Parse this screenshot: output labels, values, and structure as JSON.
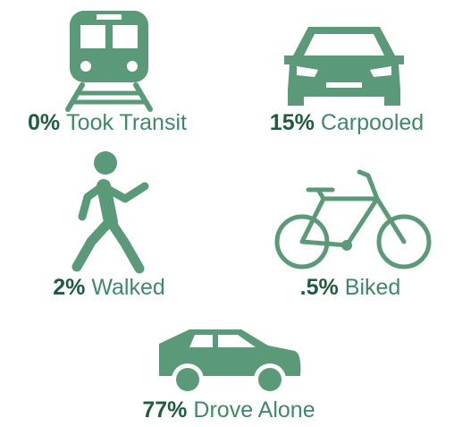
{
  "items": [
    {
      "percent": "0%",
      "label": "Took Transit"
    },
    {
      "percent": "15%",
      "label": "Carpooled"
    },
    {
      "percent": "2%",
      "label": "Walked"
    },
    {
      "percent": ".5%",
      "label": "Biked"
    },
    {
      "percent": "77%",
      "label": "Drove Alone"
    }
  ]
}
